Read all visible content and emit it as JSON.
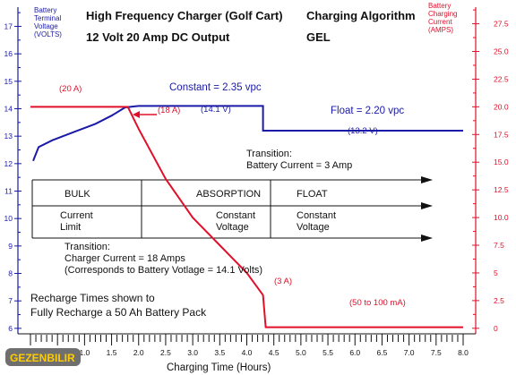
{
  "header": {
    "title_line1": "High Frequency Charger (Golf Cart)",
    "title_line2": "12 Volt 20 Amp DC Output",
    "algo_line1": "Charging Algorithm",
    "algo_line2": "GEL"
  },
  "left_axis_title": [
    "Battery",
    "Terminal",
    "Voltage",
    "(VOLTS)"
  ],
  "right_axis_title": [
    "Battery",
    "Charging",
    "Current",
    "(AMPS)"
  ],
  "x_axis_title": "Charging Time (Hours)",
  "table": {
    "headers": [
      "BULK",
      "ABSORPTION",
      "FLOAT"
    ],
    "row2": [
      [
        "Current",
        "Limit"
      ],
      [
        "Constant",
        "Voltage"
      ],
      [
        "Constant",
        "Voltage"
      ]
    ]
  },
  "annotations": {
    "constant_voltage": "Constant = 2.35 vpc",
    "float_voltage": "Float = 2.20 vpc",
    "v_14_1": "(14.1 V)",
    "v_13_2": "(13.2 V)",
    "amp_20": "(20 A)",
    "amp_18": "(18 A)",
    "amp_3": "(3 A)",
    "amp_float": "(50 to 100 mA)",
    "transition1": [
      "Transition:",
      "Battery Current = 3 Amp"
    ],
    "transition2": [
      "Transition:",
      "Charger Current = 18 Amps",
      "(Corresponds to Battery Votlage = 14.1 Volts)"
    ],
    "recharge": [
      "Recharge Times shown to",
      "Fully Recharge a 50 Ah Battery Pack"
    ]
  },
  "logo": "GEZENBILIR",
  "colors": {
    "voltage": "#1a1aa8",
    "current": "#e0102a"
  },
  "chart_data": {
    "type": "line",
    "title": "",
    "xlabel": "Charging Time (Hours)",
    "xlim": [
      0,
      8.0
    ],
    "x_ticks": [
      "0",
      "0.5",
      "1.0",
      "1.5",
      "2.0",
      "2.5",
      "3.0",
      "3.5",
      "4.0",
      "4.5",
      "5.0",
      "5.5",
      "6.0",
      "6.5",
      "7.0",
      "7.5",
      "8.0"
    ],
    "y_left": {
      "label": "Battery Terminal Voltage (VOLTS)",
      "lim": [
        5.8,
        17.7
      ],
      "ticks": [
        6,
        7,
        8,
        9,
        10,
        11,
        12,
        13,
        14,
        15,
        16,
        17
      ]
    },
    "y_right": {
      "label": "Battery Charging Current (AMPS)",
      "lim": [
        -0.5,
        29
      ],
      "ticks": [
        0,
        2.5,
        5.0,
        7.5,
        10.0,
        12.5,
        15.0,
        17.5,
        20.0,
        22.5,
        25.0,
        27.5
      ]
    },
    "series": [
      {
        "name": "Battery Terminal Voltage",
        "axis": "left",
        "x": [
          0.05,
          0.15,
          0.4,
          0.8,
          1.2,
          1.5,
          1.75,
          2.0,
          4.3,
          4.3,
          8.0
        ],
        "y": [
          12.1,
          12.6,
          12.85,
          13.15,
          13.45,
          13.75,
          14.05,
          14.1,
          14.1,
          13.2,
          13.2
        ]
      },
      {
        "name": "Battery Charging Current",
        "axis": "right",
        "x": [
          0.0,
          1.8,
          2.0,
          2.5,
          3.0,
          3.5,
          4.0,
          4.3,
          4.35,
          8.0
        ],
        "y": [
          20,
          20,
          18,
          13.5,
          10.0,
          7.5,
          5.0,
          3.0,
          0.1,
          0.1
        ]
      }
    ]
  }
}
